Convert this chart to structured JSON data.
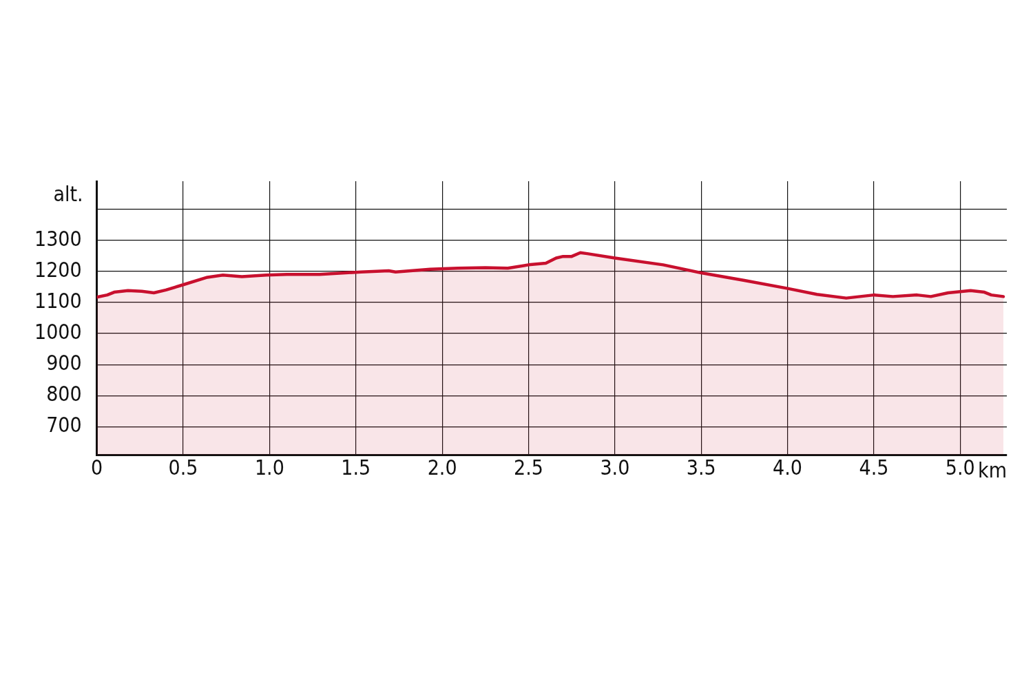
{
  "chart_data": {
    "type": "area",
    "xlabel": "km",
    "ylabel": "alt.",
    "series": [
      {
        "color": "#c8102e",
        "x": [
          0,
          0.06,
          0.1,
          0.18,
          0.26,
          0.33,
          0.4,
          0.5,
          0.64,
          0.73,
          0.84,
          0.98,
          1.1,
          1.29,
          1.53,
          1.69,
          1.73,
          1.93,
          2.09,
          2.25,
          2.38,
          2.5,
          2.6,
          2.66,
          2.7,
          2.75,
          2.8,
          2.84,
          3.0,
          3.28,
          3.5,
          3.75,
          4.0,
          4.17,
          4.34,
          4.5,
          4.61,
          4.75,
          4.83,
          4.93,
          5.06,
          5.14,
          5.18,
          5.25
        ],
        "values": [
          1117,
          1124,
          1133,
          1138,
          1136,
          1131,
          1140,
          1157,
          1181,
          1188,
          1183,
          1188,
          1190,
          1190,
          1198,
          1202,
          1198,
          1207,
          1210,
          1212,
          1210,
          1221,
          1226,
          1243,
          1248,
          1248,
          1260,
          1257,
          1243,
          1221,
          1195,
          1171,
          1145,
          1126,
          1114,
          1124,
          1119,
          1124,
          1119,
          1131,
          1138,
          1133,
          1124,
          1119
        ]
      }
    ],
    "xlim": [
      0,
      5.27
    ],
    "xticks": [
      0,
      0.5,
      {
        "value": 1,
        "label": "1.0"
      },
      1.5,
      {
        "value": 2,
        "label": "2.0"
      },
      2.5,
      {
        "value": 3,
        "label": "3.0"
      },
      3.5,
      {
        "value": 4,
        "label": "4.0"
      },
      4.5,
      {
        "value": 5,
        "label": "5.0"
      }
    ],
    "ylim": [
      610,
      1490
    ],
    "yticks": [
      700,
      800,
      900,
      1000,
      1100,
      1200,
      1300,
      {
        "value": 1400,
        "label": null
      }
    ],
    "grid": true,
    "marker": "none",
    "line_style": "solid",
    "legend": false
  }
}
